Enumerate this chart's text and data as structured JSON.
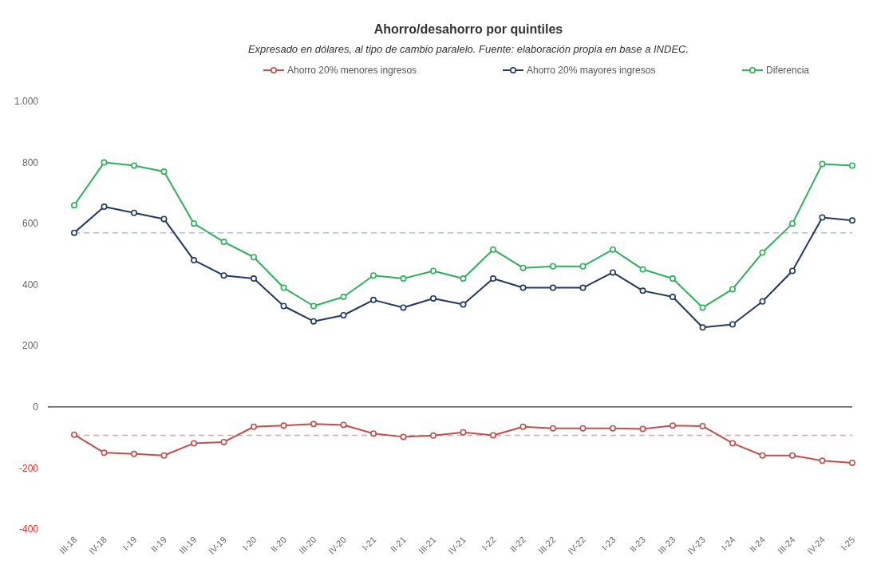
{
  "chart_data": {
    "type": "line",
    "title": "Ahorro/desahorro  por quintiles",
    "subtitle": "Expresado en dólares, al tipo de cambio paralelo. Fuente: elaboración propia en base a INDEC.",
    "categories": [
      "III-18",
      "IV-18",
      "I-19",
      "II-19",
      "III-19",
      "IV-19",
      "I-20",
      "II-20",
      "III-20",
      "IV-20",
      "I-21",
      "II-21",
      "III-21",
      "IV-21",
      "I-22",
      "II-22",
      "III-22",
      "IV-22",
      "I-23",
      "II-23",
      "III-23",
      "IV-23",
      "I-24",
      "II-24",
      "III-24",
      "IV-24",
      "I-25"
    ],
    "series": [
      {
        "name": "Ahorro 20% menores ingresos",
        "color": "#c0504d",
        "values": [
          -91,
          -150,
          -154,
          -159,
          -119,
          -115,
          -65,
          -61,
          -56,
          -59,
          -87,
          -98,
          -94,
          -83,
          -93,
          -65,
          -70,
          -70,
          -70,
          -72,
          -61,
          -63,
          -119,
          -159,
          -159,
          -176,
          -183
        ]
      },
      {
        "name": "Ahorro 20% mayores ingresos",
        "color": "#1f3864",
        "values": [
          570,
          655,
          635,
          615,
          480,
          430,
          420,
          330,
          280,
          300,
          350,
          325,
          355,
          335,
          420,
          390,
          390,
          390,
          440,
          380,
          360,
          260,
          270,
          345,
          445,
          620,
          610
        ]
      },
      {
        "name": "Diferencia",
        "color": "#2eb05a",
        "values": [
          660,
          800,
          790,
          770,
          600,
          540,
          490,
          390,
          330,
          360,
          430,
          420,
          445,
          420,
          515,
          455,
          460,
          460,
          515,
          450,
          420,
          325,
          385,
          505,
          600,
          795,
          790
        ]
      }
    ],
    "ylim": [
      -400,
      1000
    ],
    "yticks": [
      -400,
      -200,
      0,
      200,
      400,
      600,
      800,
      {
        "value": 1000,
        "label": "1.000"
      }
    ],
    "ref_lines": [
      {
        "axis": "y",
        "value": 570,
        "color": "#9dc3e6",
        "line_style": "dashed"
      },
      {
        "axis": "y",
        "value": -93,
        "color": "#e8a0a0",
        "line_style": "dashed"
      }
    ],
    "legend": "top",
    "marker": "circle",
    "line_style": "solid"
  }
}
